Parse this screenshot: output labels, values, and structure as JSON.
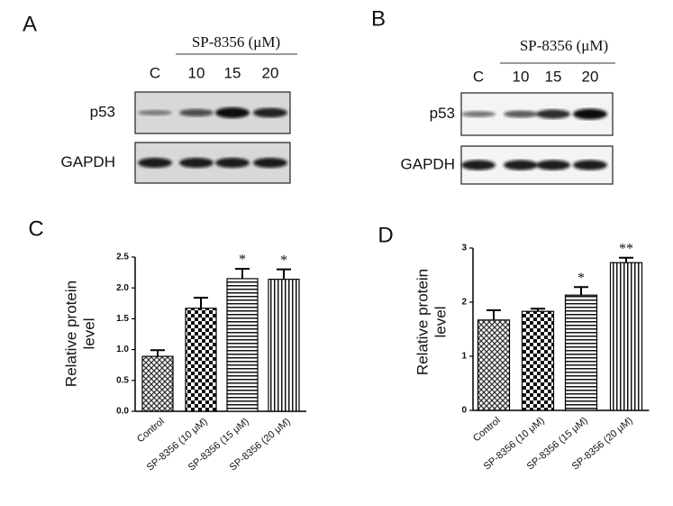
{
  "blots": [
    {
      "label": "A",
      "treatment": "SP-8356 (μM)",
      "lanes": [
        "C",
        "10",
        "15",
        "20"
      ],
      "rows": [
        "p53",
        "GAPDH"
      ]
    },
    {
      "label": "B",
      "treatment": "SP-8356 (μM)",
      "lanes": [
        "C",
        "10",
        "15",
        "20"
      ],
      "rows": [
        "p53",
        "GAPDH"
      ]
    }
  ],
  "chart_data": [
    {
      "type": "bar",
      "label": "C",
      "ylabel": [
        "Relative protein",
        "level"
      ],
      "categories": [
        "Control",
        "SP-8356 (10 μM)",
        "SP-8356 (15 μM)",
        "SP-8356 (20 μM)"
      ],
      "values": [
        0.89,
        1.67,
        2.15,
        2.14
      ],
      "errors": [
        0.1,
        0.17,
        0.16,
        0.16
      ],
      "annotations": [
        null,
        null,
        "*",
        "*"
      ],
      "ylim": [
        0,
        2.5
      ],
      "yticks": [
        {
          "value": 0,
          "label": "0.0"
        },
        {
          "value": 0.5,
          "label": "0.5"
        },
        {
          "value": 1,
          "label": "1.0"
        },
        {
          "value": 1.5,
          "label": "1.5"
        },
        {
          "value": 2,
          "label": "2.0"
        },
        {
          "value": 2.5,
          "label": "2.5"
        }
      ]
    },
    {
      "type": "bar",
      "label": "D",
      "ylabel": [
        "Relative protein",
        "level"
      ],
      "categories": [
        "Control",
        "SP-8356 (10 μM)",
        "SP-8356 (15 μM)",
        "SP-8356 (20 μM)"
      ],
      "values": [
        1.67,
        1.83,
        2.13,
        2.73
      ],
      "errors": [
        0.18,
        0.05,
        0.15,
        0.09
      ],
      "annotations": [
        null,
        null,
        "*",
        "**"
      ],
      "ylim": [
        0,
        3
      ],
      "yticks": [
        0,
        1,
        2,
        3
      ]
    }
  ]
}
